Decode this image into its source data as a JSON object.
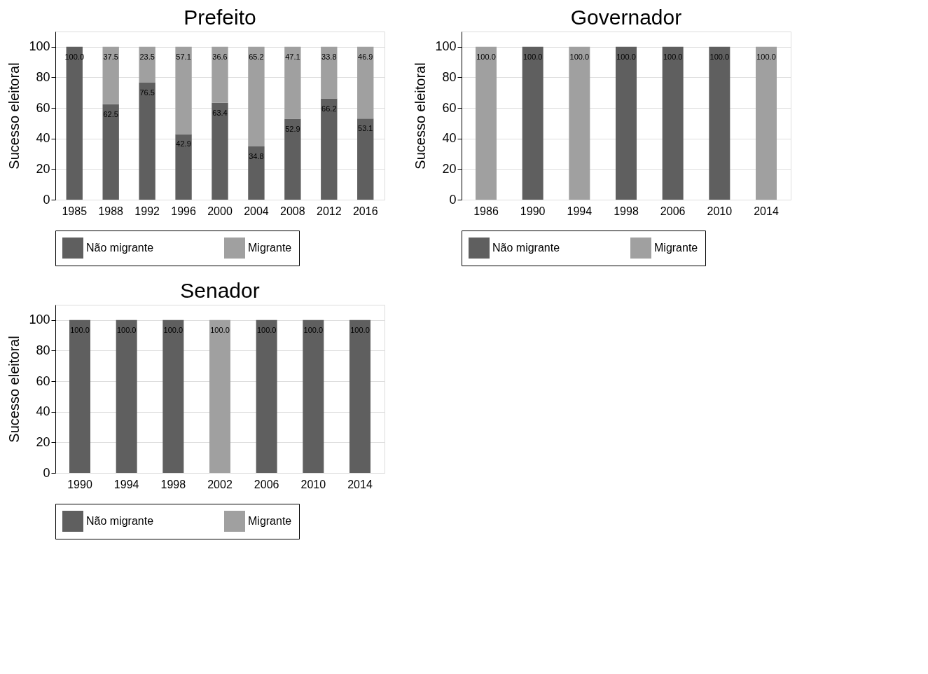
{
  "chart_data": [
    {
      "type": "bar",
      "title": "Prefeito",
      "ylabel": "Sucesso eleitoral",
      "categories": [
        "1985",
        "1988",
        "1992",
        "1996",
        "2000",
        "2004",
        "2008",
        "2012",
        "2016"
      ],
      "stacked": true,
      "ylim": [
        0,
        110
      ],
      "yticks": [
        0,
        20,
        40,
        60,
        80,
        100
      ],
      "grid": "y",
      "legend": "bottom",
      "series": [
        {
          "name": "Não migrante",
          "color": "#5f5f5f",
          "values": [
            100.0,
            62.5,
            76.5,
            42.9,
            63.4,
            34.8,
            52.9,
            66.2,
            53.1
          ],
          "value_labels": [
            "100.0",
            "62.5",
            "76.5",
            "42.9",
            "63.4",
            "34.8",
            "52.9",
            "66.2",
            "53.1"
          ]
        },
        {
          "name": "Migrante",
          "color": "#a0a0a0",
          "values": [
            null,
            37.5,
            23.5,
            57.1,
            36.6,
            65.2,
            47.1,
            33.8,
            46.9
          ],
          "value_labels": [
            null,
            "37.5",
            "23.5",
            "57.1",
            "36.6",
            "65.2",
            "47.1",
            "33.8",
            "46.9"
          ]
        }
      ]
    },
    {
      "type": "bar",
      "title": "Governador",
      "ylabel": "Sucesso eleitoral",
      "categories": [
        "1986",
        "1990",
        "1994",
        "1998",
        "2006",
        "2010",
        "2014"
      ],
      "stacked": true,
      "ylim": [
        0,
        110
      ],
      "yticks": [
        0,
        20,
        40,
        60,
        80,
        100
      ],
      "grid": "y",
      "legend": "bottom",
      "series": [
        {
          "name": "Não migrante",
          "color": "#5f5f5f",
          "values": [
            null,
            100.0,
            null,
            100.0,
            100.0,
            100.0,
            null
          ],
          "value_labels": [
            null,
            "100.0",
            null,
            "100.0",
            "100.0",
            "100.0",
            null
          ]
        },
        {
          "name": "Migrante",
          "color": "#a0a0a0",
          "values": [
            100.0,
            null,
            100.0,
            null,
            null,
            null,
            100.0
          ],
          "value_labels": [
            "100.0",
            null,
            "100.0",
            null,
            null,
            null,
            "100.0"
          ]
        }
      ]
    },
    {
      "type": "bar",
      "title": "Senador",
      "ylabel": "Sucesso eleitoral",
      "categories": [
        "1990",
        "1994",
        "1998",
        "2002",
        "2006",
        "2010",
        "2014"
      ],
      "stacked": true,
      "ylim": [
        0,
        110
      ],
      "yticks": [
        0,
        20,
        40,
        60,
        80,
        100
      ],
      "grid": "y",
      "legend": "bottom",
      "series": [
        {
          "name": "Não migrante",
          "color": "#5f5f5f",
          "values": [
            100.0,
            100.0,
            100.0,
            null,
            100.0,
            100.0,
            100.0
          ],
          "value_labels": [
            "100.0",
            "100.0",
            "100.0",
            null,
            "100.0",
            "100.0",
            "100.0"
          ]
        },
        {
          "name": "Migrante",
          "color": "#a0a0a0",
          "values": [
            null,
            null,
            null,
            100.0,
            null,
            null,
            null
          ],
          "value_labels": [
            null,
            null,
            null,
            "100.0",
            null,
            null,
            null
          ]
        }
      ]
    }
  ]
}
